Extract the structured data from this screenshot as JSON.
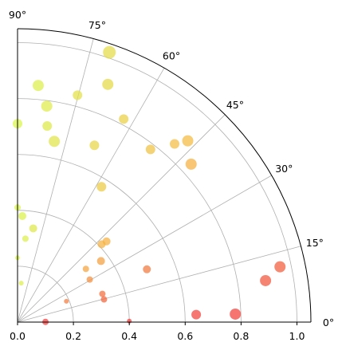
{
  "chart_data": {
    "type": "scatter",
    "projection": "polar",
    "title": "",
    "theta_range_deg": [
      0,
      90
    ],
    "r_range": [
      0,
      1.05
    ],
    "grid": true,
    "r_ticks": [
      0.0,
      0.2,
      0.4,
      0.6,
      0.8,
      1.0
    ],
    "r_tick_labels": [
      "0.0",
      "0.2",
      "0.4",
      "0.6",
      "0.8",
      "1.0"
    ],
    "theta_ticks_deg": [
      0,
      15,
      30,
      45,
      60,
      75,
      90
    ],
    "theta_tick_labels": [
      "0°",
      "15°",
      "30°",
      "45°",
      "60°",
      "75°",
      "90°"
    ],
    "colormap": "spring-like: angle 0° red → 45° orange → 90° yellow-green",
    "colors": {
      "low": "#f23a3a",
      "mid": "#f5b840",
      "high": "#d9f54a",
      "grid": "#b0b0b0",
      "axis": "#000000"
    },
    "points": [
      {
        "theta": 0.5,
        "r": 0.1,
        "size": 4
      },
      {
        "theta": 0.5,
        "r": 0.4,
        "size": 3
      },
      {
        "theta": 2.1,
        "r": 0.78,
        "size": 7
      },
      {
        "theta": 2.4,
        "r": 0.64,
        "size": 6
      },
      {
        "theta": 9.5,
        "r": 0.9,
        "size": 7
      },
      {
        "theta": 11.9,
        "r": 0.96,
        "size": 7
      },
      {
        "theta": 14.7,
        "r": 0.32,
        "size": 4
      },
      {
        "theta": 18.4,
        "r": 0.32,
        "size": 4
      },
      {
        "theta": 22.2,
        "r": 0.5,
        "size": 5
      },
      {
        "theta": 23.1,
        "r": 0.19,
        "size": 3
      },
      {
        "theta": 30.5,
        "r": 0.3,
        "size": 4
      },
      {
        "theta": 36.2,
        "r": 0.37,
        "size": 5
      },
      {
        "theta": 37.9,
        "r": 0.31,
        "size": 4
      },
      {
        "theta": 42.2,
        "r": 0.43,
        "size": 5
      },
      {
        "theta": 42.8,
        "r": 0.41,
        "size": 5
      },
      {
        "theta": 42.3,
        "r": 0.84,
        "size": 7
      },
      {
        "theta": 46.8,
        "r": 0.89,
        "size": 7
      },
      {
        "theta": 48.6,
        "r": 0.85,
        "size": 6
      },
      {
        "theta": 52.4,
        "r": 0.78,
        "size": 6
      },
      {
        "theta": 58.2,
        "r": 0.57,
        "size": 6
      },
      {
        "theta": 62.4,
        "r": 0.82,
        "size": 6
      },
      {
        "theta": 66.5,
        "r": 0.69,
        "size": 6
      },
      {
        "theta": 69.2,
        "r": 0.91,
        "size": 7
      },
      {
        "theta": 71.2,
        "r": 1.02,
        "size": 8
      },
      {
        "theta": 75.2,
        "r": 0.84,
        "size": 6
      },
      {
        "theta": 78.5,
        "r": 0.66,
        "size": 7
      },
      {
        "theta": 80.5,
        "r": 0.34,
        "size": 5
      },
      {
        "theta": 81.4,
        "r": 0.71,
        "size": 6
      },
      {
        "theta": 82.3,
        "r": 0.78,
        "size": 7
      },
      {
        "theta": 84.6,
        "r": 0.14,
        "size": 3
      },
      {
        "theta": 85.0,
        "r": 0.85,
        "size": 7
      },
      {
        "theta": 84.6,
        "r": 0.3,
        "size": 4
      },
      {
        "theta": 87.4,
        "r": 0.38,
        "size": 5
      },
      {
        "theta": 90.0,
        "r": 0.23,
        "size": 3
      },
      {
        "theta": 90.0,
        "r": 0.71,
        "size": 6
      },
      {
        "theta": 90.0,
        "r": 0.41,
        "size": 4
      }
    ]
  }
}
